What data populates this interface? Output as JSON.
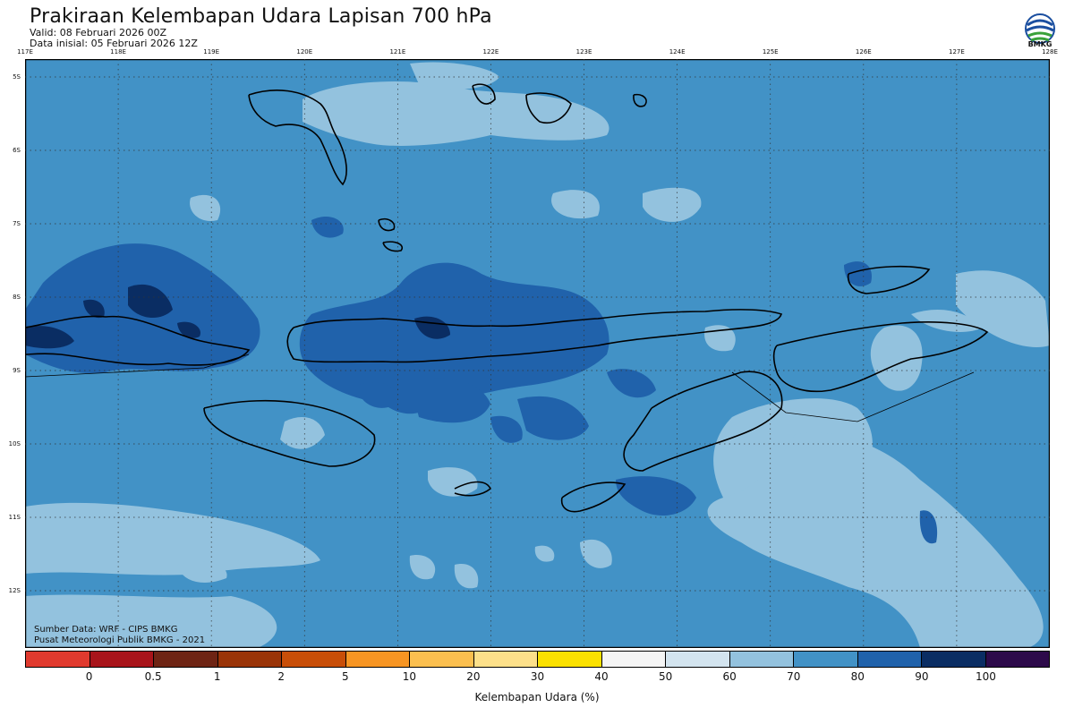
{
  "title": "Prakiraan Kelembapan Udara Lapisan 700 hPa",
  "valid": "Valid: 08 Februari 2026 00Z",
  "data_inisial": "Data inisial: 05 Februari 2026 12Z",
  "logo_text": "BMKG",
  "source_line1": "Sumber Data: WRF - CIPS BMKG",
  "source_line2": "Pusat Meteorologi Publik BMKG - 2021",
  "lon_labels": [
    "117E",
    "118E",
    "119E",
    "120E",
    "121E",
    "122E",
    "123E",
    "124E",
    "125E",
    "126E",
    "127E",
    "128E"
  ],
  "lat_labels": [
    "5S",
    "6S",
    "7S",
    "8S",
    "9S",
    "10S",
    "11S",
    "12S"
  ],
  "colorbar": {
    "colors": [
      "#e03a2e",
      "#a8141a",
      "#6e2414",
      "#9a3408",
      "#c84e08",
      "#f79523",
      "#fbbf4f",
      "#fde08a",
      "#fbe100",
      "#f5f5f5",
      "#d3e4ef",
      "#93c2de",
      "#4292c6",
      "#2062ab",
      "#0a2d63",
      "#2d0a4a"
    ],
    "ticks": [
      "0",
      "0.5",
      "1",
      "2",
      "5",
      "10",
      "20",
      "30",
      "40",
      "50",
      "60",
      "70",
      "80",
      "90",
      "100"
    ],
    "title": "Kelembapan Udara (%)"
  },
  "map": {
    "background_color": "#4292c6",
    "light_color": "#93c2de",
    "dark_color": "#2062ab",
    "darkest_color": "#0a2d63"
  }
}
